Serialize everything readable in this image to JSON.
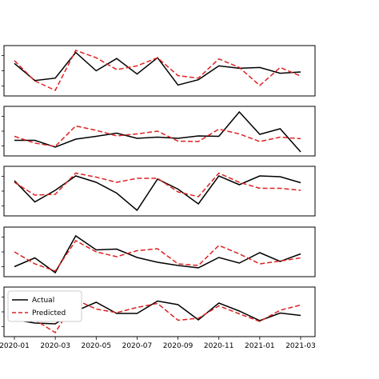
{
  "chart_data": {
    "type": "line",
    "x": [
      "2020-01",
      "2020-02",
      "2020-03",
      "2020-04",
      "2020-05",
      "2020-06",
      "2020-07",
      "2020-08",
      "2020-09",
      "2020-10",
      "2020-11",
      "2020-12",
      "2021-01",
      "2021-02",
      "2021-03"
    ],
    "xticks": [
      "2020-01",
      "2020-03",
      "2020-05",
      "2020-07",
      "2020-09",
      "2020-11",
      "2021-01",
      "2021-03"
    ],
    "legend": {
      "actual_label": "Actual",
      "predicted_label": "Predicted",
      "location": "upper-left of bottom panel"
    },
    "styles": {
      "actual_color": "#000000",
      "predicted_color": "#dd2222",
      "predicted_dash": "dashed"
    },
    "grid": false,
    "panels": [
      {
        "ylim": [
          0,
          1
        ],
        "series": [
          {
            "name": "Actual",
            "values": [
              0.68,
              0.26,
              0.32,
              0.95,
              0.5,
              0.8,
              0.42,
              0.82,
              0.15,
              0.28,
              0.62,
              0.56,
              0.58,
              0.44,
              0.47
            ]
          },
          {
            "name": "Predicted",
            "values": [
              0.75,
              0.25,
              0.02,
              1.0,
              0.82,
              0.53,
              0.62,
              0.82,
              0.38,
              0.32,
              0.79,
              0.58,
              0.14,
              0.58,
              0.37
            ]
          }
        ]
      },
      {
        "ylim": [
          0,
          1
        ],
        "series": [
          {
            "name": "Actual",
            "values": [
              0.27,
              0.27,
              0.1,
              0.3,
              0.37,
              0.45,
              0.32,
              0.35,
              0.32,
              0.38,
              0.37,
              0.98,
              0.42,
              0.56,
              -0.02
            ]
          },
          {
            "name": "Predicted",
            "values": [
              0.37,
              0.2,
              0.12,
              0.63,
              0.52,
              0.38,
              0.43,
              0.5,
              0.25,
              0.24,
              0.55,
              0.43,
              0.24,
              0.35,
              0.31
            ]
          }
        ]
      },
      {
        "ylim": [
          0,
          1
        ],
        "series": [
          {
            "name": "Actual",
            "values": [
              0.76,
              0.23,
              0.52,
              0.88,
              0.72,
              0.45,
              0.02,
              0.8,
              0.55,
              0.18,
              0.88,
              0.66,
              0.88,
              0.86,
              0.71
            ]
          },
          {
            "name": "Predicted",
            "values": [
              0.72,
              0.4,
              0.42,
              0.95,
              0.85,
              0.72,
              0.82,
              0.82,
              0.48,
              0.36,
              0.95,
              0.72,
              0.57,
              0.57,
              0.52
            ]
          }
        ]
      },
      {
        "ylim": [
          0,
          1
        ],
        "series": [
          {
            "name": "Actual",
            "values": [
              0.13,
              0.35,
              -0.02,
              0.9,
              0.55,
              0.57,
              0.36,
              0.24,
              0.16,
              0.1,
              0.36,
              0.22,
              0.48,
              0.26,
              0.45
            ]
          },
          {
            "name": "Predicted",
            "values": [
              0.5,
              0.2,
              0.02,
              0.78,
              0.5,
              0.38,
              0.53,
              0.58,
              0.2,
              0.16,
              0.66,
              0.45,
              0.2,
              0.27,
              0.35
            ]
          }
        ]
      },
      {
        "ylim": [
          0,
          1
        ],
        "series": [
          {
            "name": "Actual",
            "values": [
              0.3,
              0.22,
              0.2,
              0.52,
              0.74,
              0.46,
              0.46,
              0.77,
              0.68,
              0.3,
              0.72,
              0.52,
              0.28,
              0.47,
              0.41
            ]
          },
          {
            "name": "Predicted",
            "values": [
              0.54,
              0.3,
              -0.02,
              0.8,
              0.57,
              0.48,
              0.61,
              0.71,
              0.29,
              0.34,
              0.65,
              0.45,
              0.26,
              0.54,
              0.67
            ]
          }
        ]
      }
    ]
  }
}
